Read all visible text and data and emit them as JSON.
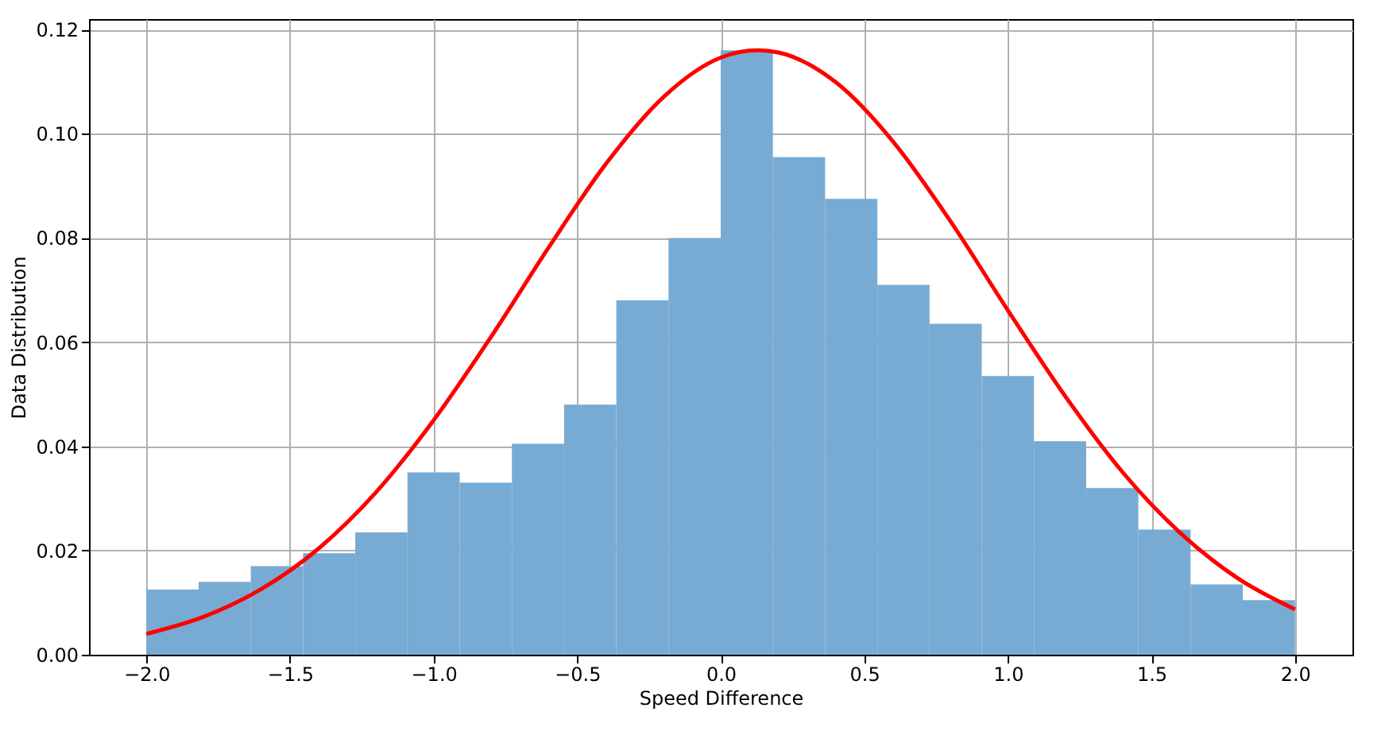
{
  "chart_data": {
    "type": "histogram",
    "xlabel": "Speed Difference",
    "ylabel": "Data Distribution",
    "bins": [
      -2,
      -1.8182,
      -1.6364,
      -1.4545,
      -1.2727,
      -1.0909,
      -0.9091,
      -0.7273,
      -0.5455,
      -0.3636,
      -0.1818,
      0,
      0.1818,
      0.3636,
      0.5455,
      0.7273,
      0.9091,
      1.0909,
      1.2727,
      1.4545,
      1.6364,
      1.8182,
      2
    ],
    "values": [
      0.0125,
      0.014,
      0.017,
      0.0195,
      0.0235,
      0.035,
      0.033,
      0.0405,
      0.048,
      0.068,
      0.08,
      0.116,
      0.0955,
      0.0875,
      0.071,
      0.0635,
      0.0535,
      0.041,
      0.032,
      0.024,
      0.0135,
      0.0105
    ],
    "color": "#78abd3",
    "series": [
      {
        "type": "line",
        "color": "#ff0000",
        "x": [
          -2.0,
          -1.8,
          -1.6,
          -1.4,
          -1.2,
          -1.0,
          -0.8,
          -0.6,
          -0.4,
          -0.2,
          0.0,
          0.13,
          0.2,
          0.4,
          0.6,
          0.8,
          1.0,
          1.2,
          1.4,
          1.6,
          1.8,
          2.0
        ],
        "values": [
          0.004,
          0.0073,
          0.0126,
          0.0204,
          0.0312,
          0.045,
          0.061,
          0.0781,
          0.0942,
          0.107,
          0.1146,
          0.116,
          0.1156,
          0.1099,
          0.0985,
          0.0832,
          0.0661,
          0.0496,
          0.035,
          0.0234,
          0.0147,
          0.0087
        ]
      }
    ],
    "xlim": [
      -2.2,
      2.2
    ],
    "xticks": [
      {
        "value": -2,
        "label": "−2.0"
      },
      {
        "value": -1.5,
        "label": "−1.5"
      },
      {
        "value": -1,
        "label": "−1.0"
      },
      {
        "value": -0.5,
        "label": "−0.5"
      },
      {
        "value": 0,
        "label": "0.0"
      },
      {
        "value": 0.5,
        "label": "0.5"
      },
      {
        "value": 1,
        "label": "1.0"
      },
      {
        "value": 1.5,
        "label": "1.5"
      },
      {
        "value": 2,
        "label": "2.0"
      }
    ],
    "ylim": [
      0,
      0.122
    ],
    "yticks": [
      {
        "value": 0,
        "label": "0.00"
      },
      {
        "value": 0.02,
        "label": "0.02"
      },
      {
        "value": 0.04,
        "label": "0.04"
      },
      {
        "value": 0.06,
        "label": "0.06"
      },
      {
        "value": 0.08,
        "label": "0.08"
      },
      {
        "value": 0.1,
        "label": "0.10"
      },
      {
        "value": 0.12,
        "label": "0.12"
      }
    ],
    "grid": true,
    "marker": "none",
    "line_style": "solid"
  }
}
